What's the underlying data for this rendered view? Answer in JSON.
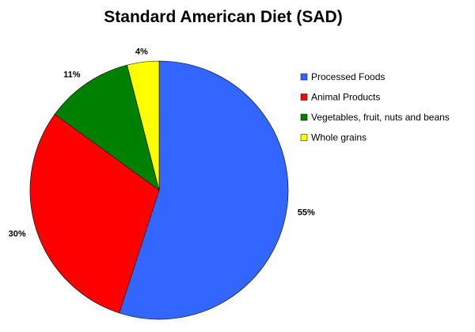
{
  "chart_data": {
    "type": "pie",
    "title": "Standard American Diet (SAD)",
    "categories": [
      "Processed Foods",
      "Animal Products",
      "Vegetables, fruit, nuts and beans",
      "Whole grains"
    ],
    "values": [
      55,
      30,
      11,
      4
    ],
    "value_labels": [
      "55%",
      "30%",
      "11%",
      "4%"
    ],
    "colors": [
      "#3366ff",
      "#ff0000",
      "#008000",
      "#ffff00"
    ],
    "start": "12 o'clock, clockwise",
    "legend": "right"
  }
}
